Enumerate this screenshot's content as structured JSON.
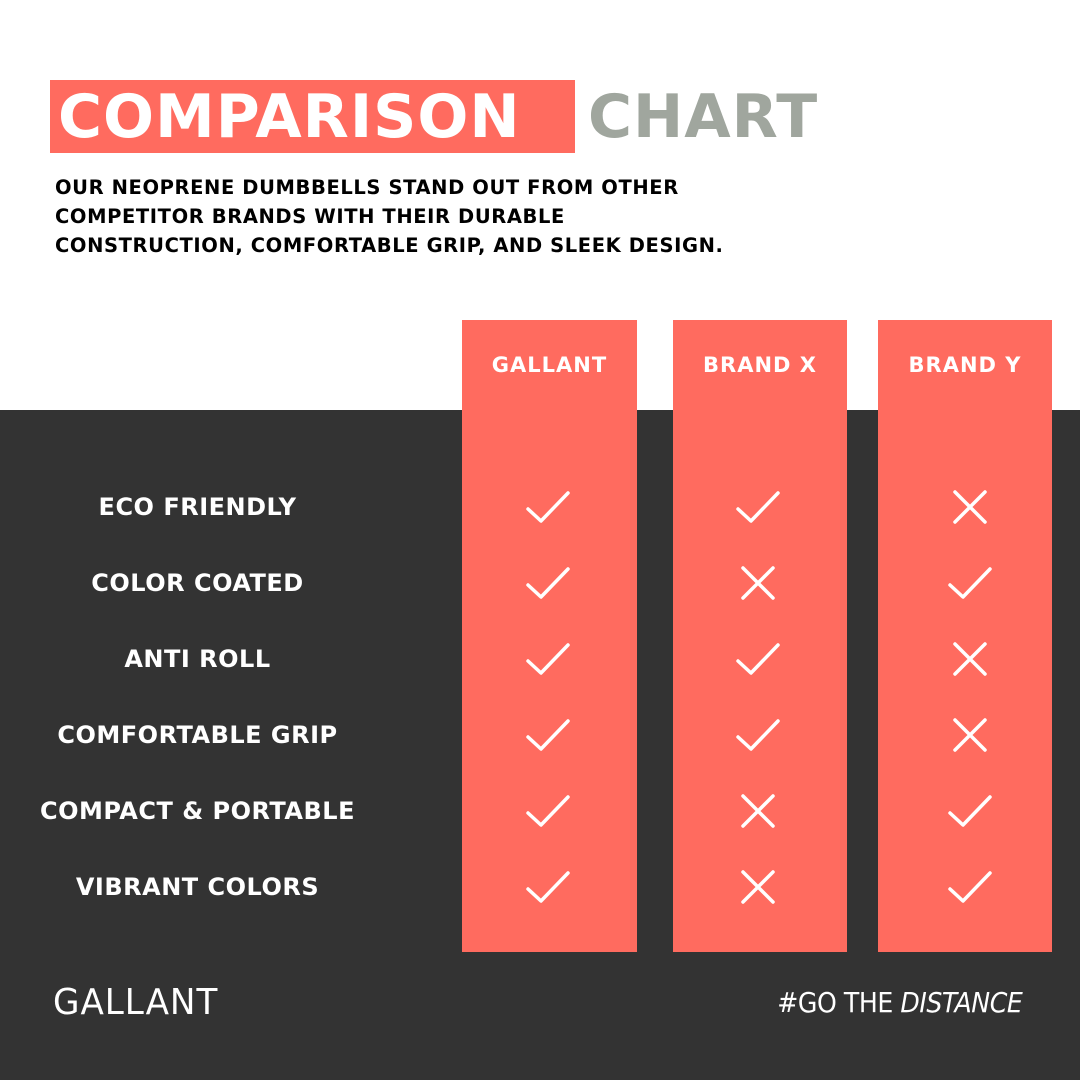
{
  "header": {
    "title_highlight": "COMPARISON",
    "title_rest": "CHART",
    "subtitle_lines": [
      "OUR NEOPRENE DUMBBELLS STAND OUT FROM OTHER",
      "COMPETITOR BRANDS WITH THEIR DURABLE",
      "CONSTRUCTION, COMFORTABLE GRIP, AND SLEEK DESIGN."
    ]
  },
  "colors": {
    "accent": "#ff6b5f",
    "dark": "#333333",
    "gray": "#a0a69e"
  },
  "chart_data": {
    "type": "table",
    "columns": [
      "GALLANT",
      "BRAND X",
      "BRAND Y"
    ],
    "rows": [
      {
        "label": "ECO FRIENDLY",
        "values": [
          true,
          true,
          false
        ]
      },
      {
        "label": "COLOR COATED",
        "values": [
          true,
          false,
          true
        ]
      },
      {
        "label": "ANTI ROLL",
        "values": [
          true,
          true,
          false
        ]
      },
      {
        "label": "COMFORTABLE GRIP",
        "values": [
          true,
          true,
          false
        ]
      },
      {
        "label": "COMPACT & PORTABLE",
        "values": [
          true,
          false,
          true
        ]
      },
      {
        "label": "VIBRANT COLORS",
        "values": [
          true,
          false,
          true
        ]
      }
    ],
    "true_icon": "check-icon",
    "false_icon": "cross-icon"
  },
  "footer": {
    "logo": "GALLANT",
    "hashtag_a": "#GO THE ",
    "hashtag_b": "DISTANCE"
  }
}
